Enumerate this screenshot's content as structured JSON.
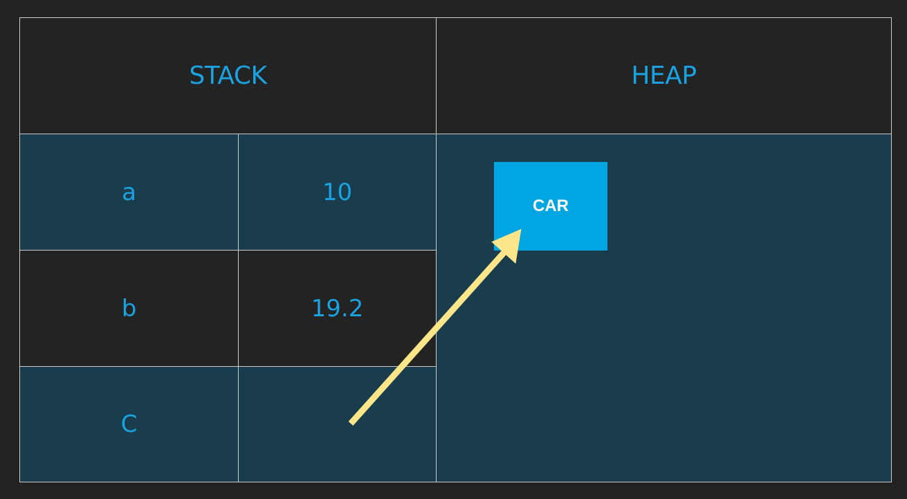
{
  "stack": {
    "title": "STACK",
    "rows": [
      {
        "name": "a",
        "value": "10"
      },
      {
        "name": "b",
        "value": "19.2"
      },
      {
        "name": "C",
        "value": ""
      }
    ]
  },
  "heap": {
    "title": "HEAP",
    "object_label": "CAR"
  },
  "colors": {
    "background": "#232323",
    "row_teal": "#1a3d4e",
    "text_blue": "#1aa3e0",
    "heap_object": "#00a5e2",
    "arrow": "#fde68a"
  }
}
